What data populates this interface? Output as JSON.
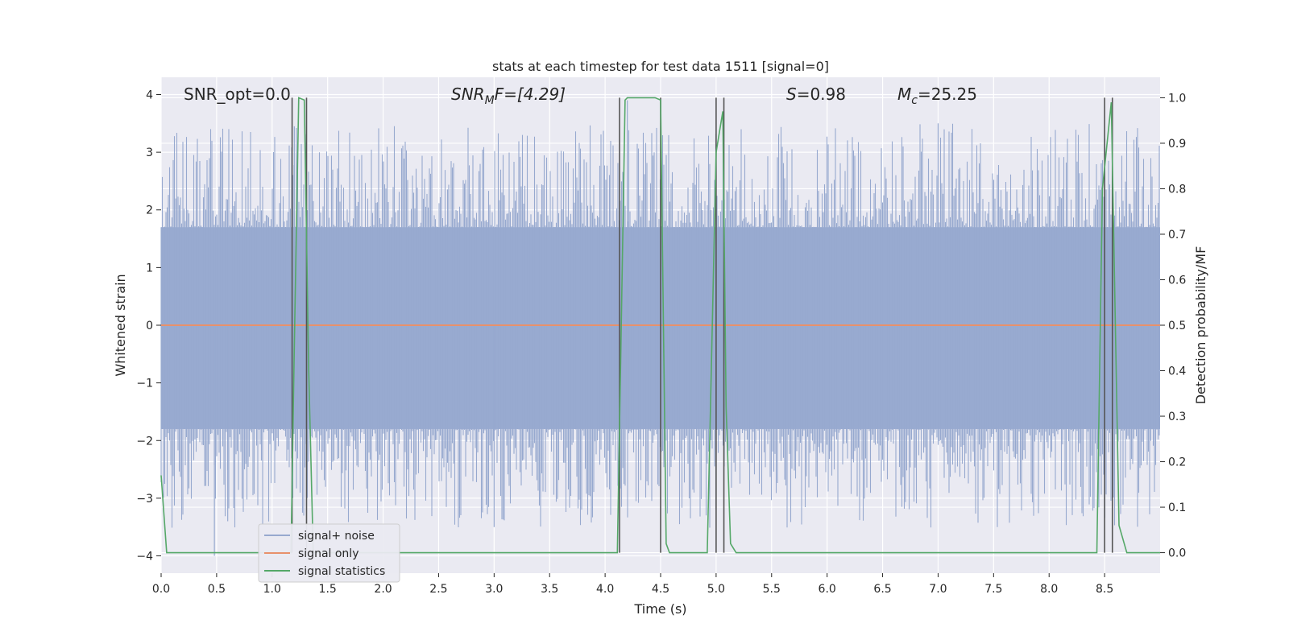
{
  "chart_data": {
    "type": "line",
    "title": "stats at each timestep for test data 1511 [signal=0]",
    "xlabel": "Time (s)",
    "ylabel_left": "Whitened strain",
    "ylabel_right": "Detection probability/MF",
    "xlim": [
      0.0,
      9.0
    ],
    "ylim_left": [
      -4.3,
      4.3
    ],
    "ylim_right": [
      -0.045,
      1.045
    ],
    "x_ticks": [
      "0.0",
      "0.5",
      "1.0",
      "1.5",
      "2.0",
      "2.5",
      "3.0",
      "3.5",
      "4.0",
      "4.5",
      "5.0",
      "5.5",
      "6.0",
      "6.5",
      "7.0",
      "7.5",
      "8.0",
      "8.5"
    ],
    "y_ticks_left": [
      "4",
      "3",
      "2",
      "1",
      "0",
      "−1",
      "−2",
      "−3",
      "−4"
    ],
    "y_ticks_right": [
      "1.0",
      "0.9",
      "0.8",
      "0.7",
      "0.6",
      "0.5",
      "0.4",
      "0.3",
      "0.2",
      "0.1",
      "0.0"
    ],
    "grid": true,
    "legend_position": "lower-left",
    "annotations": {
      "snr_opt": "SNR_opt=0.0",
      "snr_mf": "SNR",
      "snr_mf_sub": "M",
      "snr_mf_tail": "F=[4.29]",
      "s_label": "S",
      "s_value": "=0.98",
      "mc_label": "M",
      "mc_sub": "c",
      "mc_value": "=25.25"
    },
    "series": [
      {
        "name": "signal+ noise",
        "color": "#97a9cf",
        "amplitude_range": [
          -4.0,
          4.0
        ],
        "typical_band": [
          -1.8,
          1.7
        ]
      },
      {
        "name": "signal only",
        "color": "#e8916b",
        "y": 0.0
      },
      {
        "name": "signal statistics",
        "color": "#55a868",
        "x": [
          0.0,
          0.05,
          0.1,
          1.17,
          1.2,
          1.24,
          1.29,
          1.33,
          1.37,
          4.11,
          4.14,
          4.18,
          4.2,
          4.45,
          4.5,
          4.55,
          4.58,
          4.63,
          4.92,
          5.0,
          5.06,
          5.09,
          5.13,
          5.18,
          8.43,
          8.48,
          8.56,
          8.63,
          8.7,
          9.0
        ],
        "y": [
          0.17,
          0.0,
          0.0,
          0.0,
          0.45,
          1.0,
          0.995,
          0.4,
          0.0,
          0.0,
          0.42,
          0.995,
          1.0,
          1.0,
          0.995,
          0.02,
          0.0,
          0.0,
          0.0,
          0.88,
          0.97,
          0.32,
          0.02,
          0.0,
          0.0,
          0.8,
          0.99,
          0.06,
          0.0,
          0.0
        ]
      }
    ],
    "vlines": [
      {
        "x": 1.18,
        "ymin": 0.0,
        "ymax": 1.0
      },
      {
        "x": 1.31,
        "ymin": 0.0,
        "ymax": 1.0
      },
      {
        "x": 4.13,
        "ymin": 0.0,
        "ymax": 1.0
      },
      {
        "x": 4.5,
        "ymin": 0.0,
        "ymax": 1.0
      },
      {
        "x": 5.0,
        "ymin": 0.0,
        "ymax": 1.0
      },
      {
        "x": 5.07,
        "ymin": 0.0,
        "ymax": 1.0
      },
      {
        "x": 8.5,
        "ymin": 0.0,
        "ymax": 1.0
      },
      {
        "x": 8.57,
        "ymin": 0.0,
        "ymax": 1.0
      }
    ],
    "colors": {
      "axes_bg": "#eaeaf2",
      "grid": "#ffffff",
      "vline": "#555555",
      "text": "#262626"
    }
  }
}
